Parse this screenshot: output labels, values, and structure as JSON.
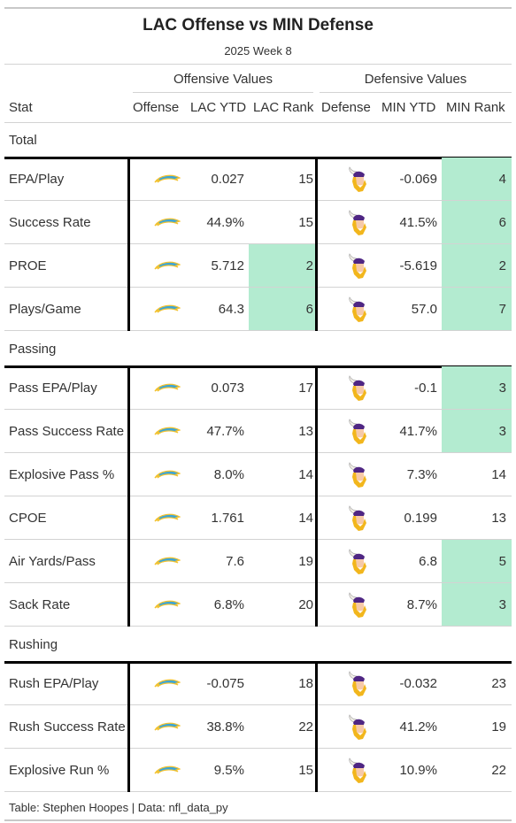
{
  "title": "LAC Offense vs MIN Defense",
  "subtitle": "2025 Week 8",
  "groups": {
    "offense": "Offensive Values",
    "defense": "Defensive Values"
  },
  "columns": [
    "Stat",
    "Offense",
    "LAC YTD",
    "LAC Rank",
    "Defense",
    "MIN YTD",
    "MIN Rank"
  ],
  "highlight_color": "#b3ebd0",
  "offense_logo": "chargers-bolt-icon",
  "defense_logo": "vikings-head-icon",
  "sections": [
    {
      "name": "Total",
      "rows": [
        {
          "stat": "EPA/Play",
          "lac_ytd": "0.027",
          "lac_rank": "15",
          "lac_hl": false,
          "min_ytd": "-0.069",
          "min_rank": "4",
          "min_hl": true
        },
        {
          "stat": "Success Rate",
          "lac_ytd": "44.9%",
          "lac_rank": "15",
          "lac_hl": false,
          "min_ytd": "41.5%",
          "min_rank": "6",
          "min_hl": true
        },
        {
          "stat": "PROE",
          "lac_ytd": "5.712",
          "lac_rank": "2",
          "lac_hl": true,
          "min_ytd": "-5.619",
          "min_rank": "2",
          "min_hl": true
        },
        {
          "stat": "Plays/Game",
          "lac_ytd": "64.3",
          "lac_rank": "6",
          "lac_hl": true,
          "min_ytd": "57.0",
          "min_rank": "7",
          "min_hl": true
        }
      ]
    },
    {
      "name": "Passing",
      "rows": [
        {
          "stat": "Pass EPA/Play",
          "lac_ytd": "0.073",
          "lac_rank": "17",
          "lac_hl": false,
          "min_ytd": "-0.1",
          "min_rank": "3",
          "min_hl": true
        },
        {
          "stat": "Pass Success Rate",
          "lac_ytd": "47.7%",
          "lac_rank": "13",
          "lac_hl": false,
          "min_ytd": "41.7%",
          "min_rank": "3",
          "min_hl": true
        },
        {
          "stat": "Explosive Pass %",
          "lac_ytd": "8.0%",
          "lac_rank": "14",
          "lac_hl": false,
          "min_ytd": "7.3%",
          "min_rank": "14",
          "min_hl": false
        },
        {
          "stat": "CPOE",
          "lac_ytd": "1.761",
          "lac_rank": "14",
          "lac_hl": false,
          "min_ytd": "0.199",
          "min_rank": "13",
          "min_hl": false
        },
        {
          "stat": "Air Yards/Pass",
          "lac_ytd": "7.6",
          "lac_rank": "19",
          "lac_hl": false,
          "min_ytd": "6.8",
          "min_rank": "5",
          "min_hl": true
        },
        {
          "stat": "Sack Rate",
          "lac_ytd": "6.8%",
          "lac_rank": "20",
          "lac_hl": false,
          "min_ytd": "8.7%",
          "min_rank": "3",
          "min_hl": true
        }
      ]
    },
    {
      "name": "Rushing",
      "rows": [
        {
          "stat": "Rush EPA/Play",
          "lac_ytd": "-0.075",
          "lac_rank": "18",
          "lac_hl": false,
          "min_ytd": "-0.032",
          "min_rank": "23",
          "min_hl": false
        },
        {
          "stat": "Rush Success Rate",
          "lac_ytd": "38.8%",
          "lac_rank": "22",
          "lac_hl": false,
          "min_ytd": "41.2%",
          "min_rank": "19",
          "min_hl": false
        },
        {
          "stat": "Explosive Run %",
          "lac_ytd": "9.5%",
          "lac_rank": "15",
          "lac_hl": false,
          "min_ytd": "10.9%",
          "min_rank": "22",
          "min_hl": false
        }
      ]
    }
  ],
  "footer": "Table: Stephen Hoopes | Data: nfl_data_py"
}
